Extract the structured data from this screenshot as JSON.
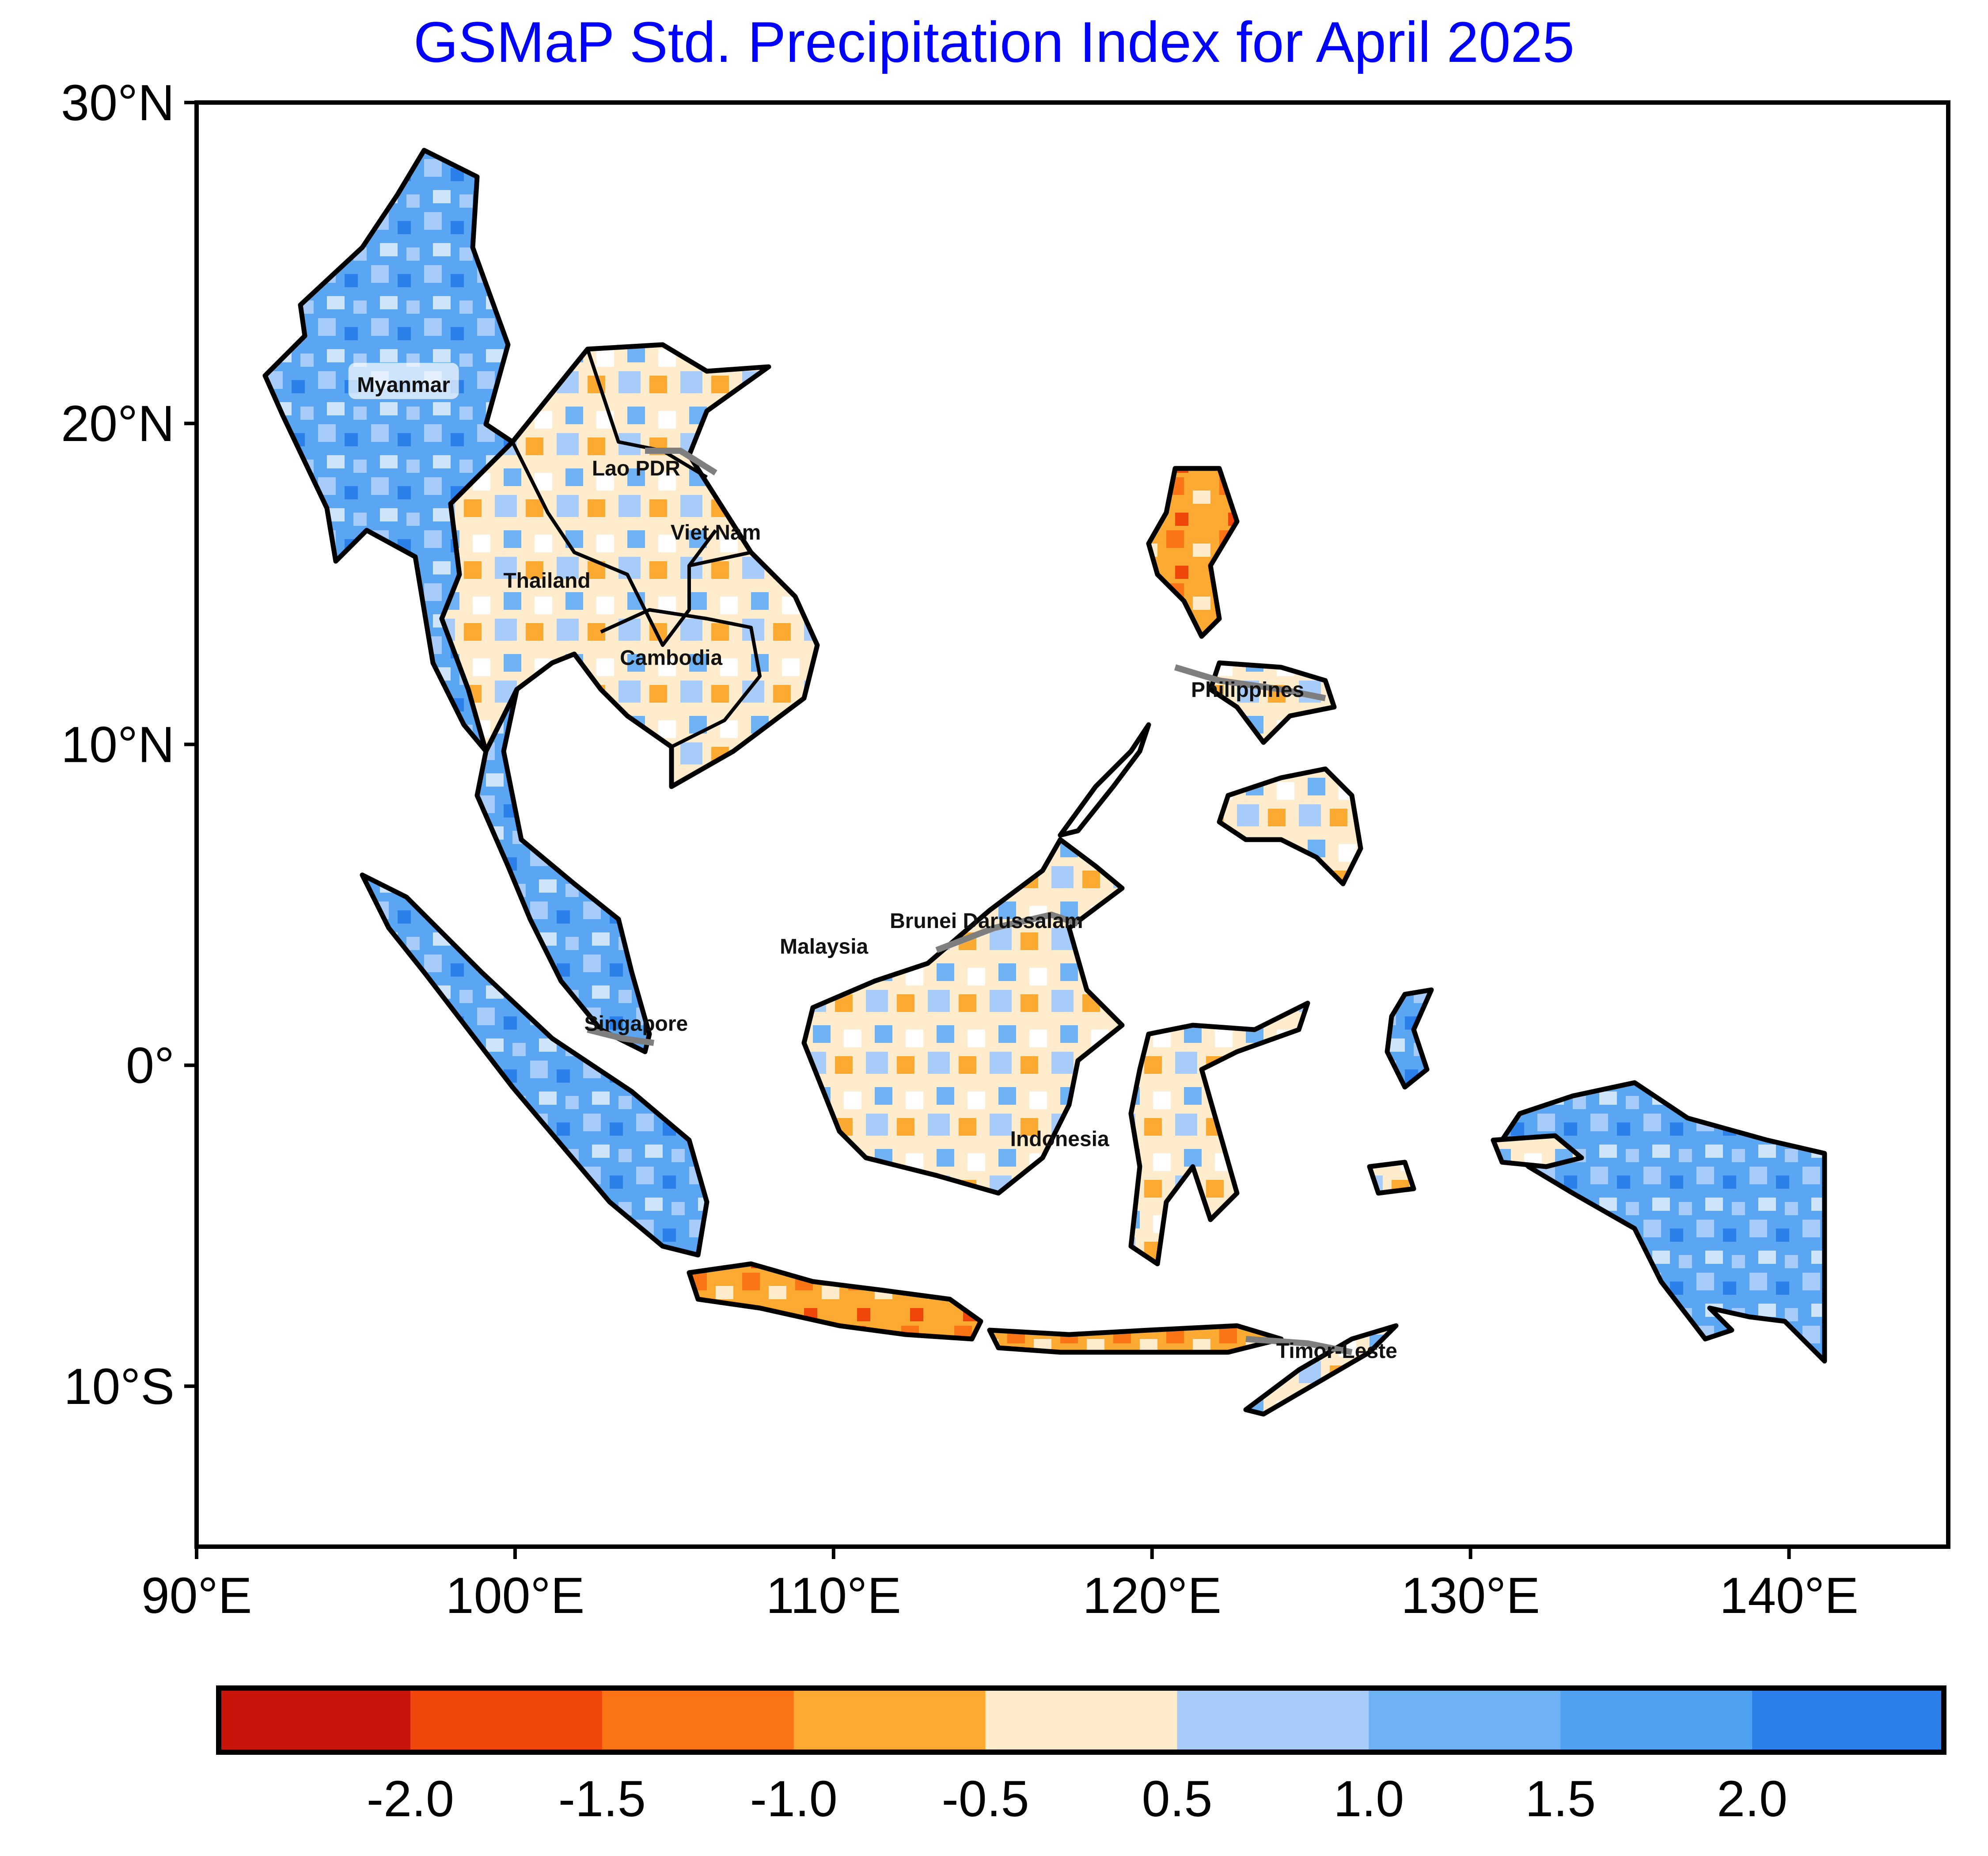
{
  "title": "GSMaP Std. Precipitation Index for April 2025",
  "axes": {
    "lon_ticks": [
      {
        "value": 90,
        "label": "90°E"
      },
      {
        "value": 100,
        "label": "100°E"
      },
      {
        "value": 110,
        "label": "110°E"
      },
      {
        "value": 120,
        "label": "120°E"
      },
      {
        "value": 130,
        "label": "130°E"
      },
      {
        "value": 140,
        "label": "140°E"
      }
    ],
    "lat_ticks": [
      {
        "value": 30,
        "label": "30°N"
      },
      {
        "value": 20,
        "label": "20°N"
      },
      {
        "value": 10,
        "label": "10°N"
      },
      {
        "value": 0,
        "label": "0°"
      },
      {
        "value": -10,
        "label": "10°S"
      }
    ],
    "lon_range": [
      90,
      145
    ],
    "lat_range": [
      -15,
      30
    ]
  },
  "countries": [
    {
      "name": "Myanmar",
      "lon": 96.5,
      "lat": 21.2,
      "boxed": true
    },
    {
      "name": "Lao PDR",
      "lon": 103.8,
      "lat": 18.6
    },
    {
      "name": "Viet Nam",
      "lon": 106.3,
      "lat": 16.6
    },
    {
      "name": "Thailand",
      "lon": 101.0,
      "lat": 15.1
    },
    {
      "name": "Cambodia",
      "lon": 104.9,
      "lat": 12.7
    },
    {
      "name": "Philippines",
      "lon": 123.0,
      "lat": 11.7
    },
    {
      "name": "Brunei Darussalam",
      "lon": 114.8,
      "lat": 4.5
    },
    {
      "name": "Malaysia",
      "lon": 109.7,
      "lat": 3.7
    },
    {
      "name": "Singapore",
      "lon": 103.8,
      "lat": 1.3
    },
    {
      "name": "Indonesia",
      "lon": 117.1,
      "lat": -2.3
    },
    {
      "name": "Timor-Leste",
      "lon": 125.8,
      "lat": -8.9
    }
  ],
  "colorbar": {
    "colors": [
      "#c8140a",
      "#f0460a",
      "#fa7314",
      "#fcaa32",
      "#feeccc",
      "#a8ccfa",
      "#6eb2f4",
      "#50a2f0",
      "#2a80e8"
    ],
    "labels": [
      "-2.0",
      "-1.5",
      "-1.0",
      "-0.5",
      "0.5",
      "1.0",
      "1.5",
      "2.0"
    ]
  }
}
